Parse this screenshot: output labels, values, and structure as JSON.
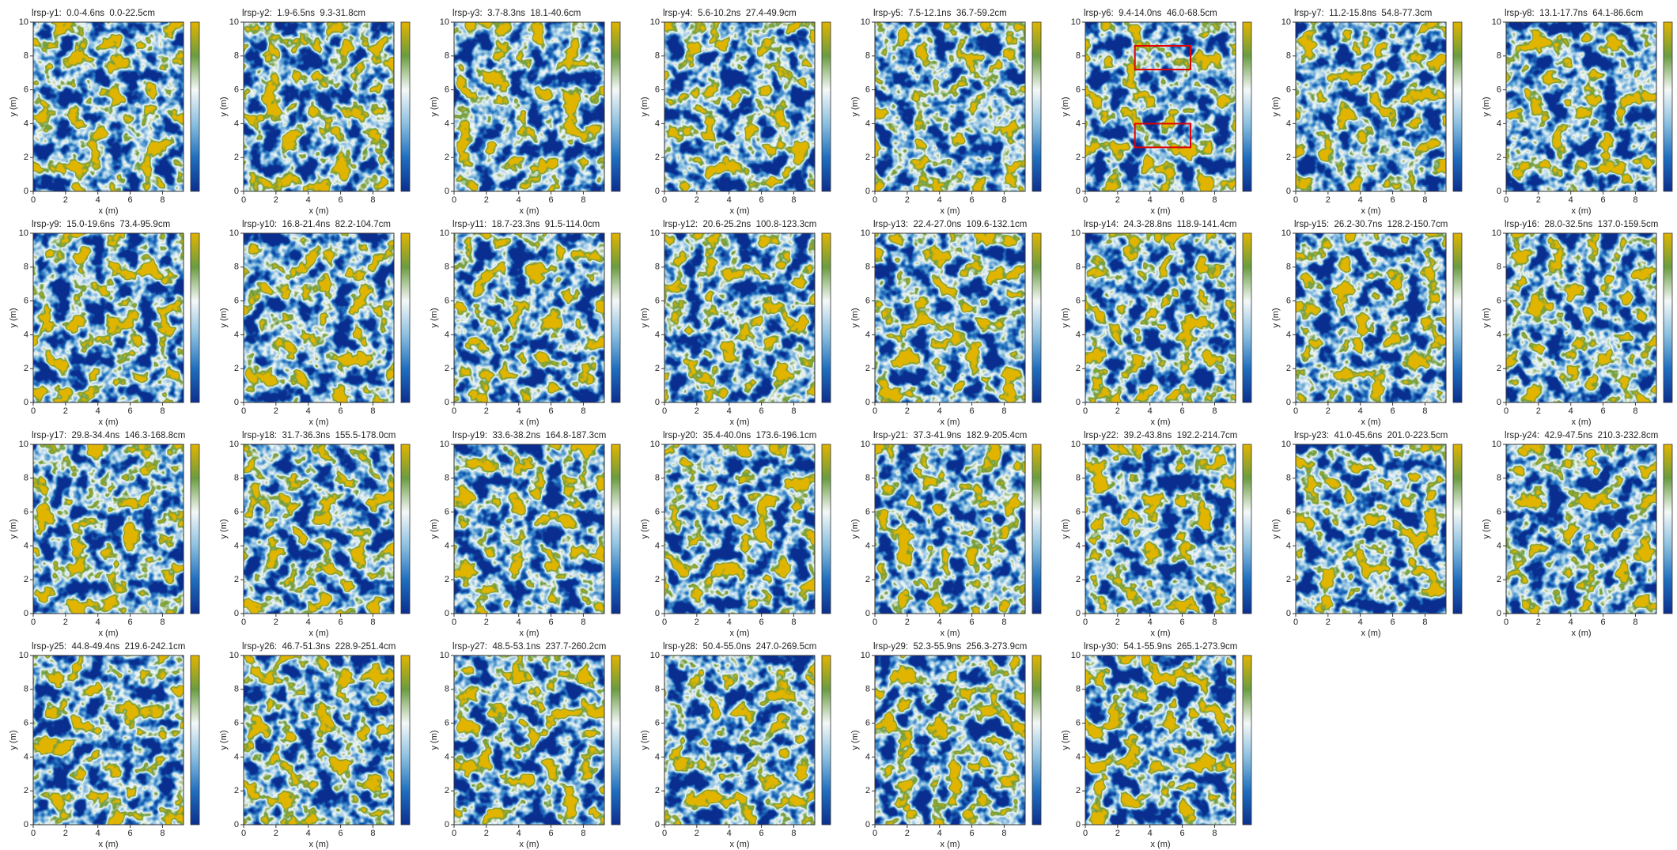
{
  "chart_data": [
    {
      "type": "heatmap",
      "title": "lrsp-y1:  0.0-4.6ns  0.0-22.5cm",
      "xlabel": "x (m)",
      "ylabel": "y (m)",
      "xlim": [
        0,
        9.3
      ],
      "ylim": [
        0,
        10
      ],
      "xticks": [
        0,
        2,
        4,
        6,
        8
      ],
      "yticks": [
        0,
        2,
        4,
        6,
        8,
        10
      ],
      "colormap": [
        "#0b2f8f",
        "#1f6fbf",
        "#8cc0e0",
        "#f4f8f8",
        "#6a9c40",
        "#e2b400"
      ]
    },
    {
      "type": "heatmap",
      "title": "lrsp-y2:  1.9-6.5ns  9.3-31.8cm",
      "xlabel": "x (m)",
      "ylabel": "y (m)",
      "xlim": [
        0,
        9.3
      ],
      "ylim": [
        0,
        10
      ],
      "xticks": [
        0,
        2,
        4,
        6,
        8
      ],
      "yticks": [
        0,
        2,
        4,
        6,
        8,
        10
      ],
      "colormap": [
        "#0b2f8f",
        "#1f6fbf",
        "#8cc0e0",
        "#f4f8f8",
        "#6a9c40",
        "#e2b400"
      ]
    },
    {
      "type": "heatmap",
      "title": "lrsp-y3:  3.7-8.3ns  18.1-40.6cm",
      "xlabel": "x (m)",
      "ylabel": "y (m)",
      "xlim": [
        0,
        9.3
      ],
      "ylim": [
        0,
        10
      ],
      "xticks": [
        0,
        2,
        4,
        6,
        8
      ],
      "yticks": [
        0,
        2,
        4,
        6,
        8,
        10
      ],
      "colormap": [
        "#0b2f8f",
        "#1f6fbf",
        "#8cc0e0",
        "#f4f8f8",
        "#6a9c40",
        "#e2b400"
      ]
    },
    {
      "type": "heatmap",
      "title": "lrsp-y4:  5.6-10.2ns  27.4-49.9cm",
      "xlabel": "x (m)",
      "ylabel": "y (m)",
      "xlim": [
        0,
        9.3
      ],
      "ylim": [
        0,
        10
      ],
      "xticks": [
        0,
        2,
        4,
        6,
        8
      ],
      "yticks": [
        0,
        2,
        4,
        6,
        8,
        10
      ],
      "colormap": [
        "#0b2f8f",
        "#1f6fbf",
        "#8cc0e0",
        "#f4f8f8",
        "#6a9c40",
        "#e2b400"
      ]
    },
    {
      "type": "heatmap",
      "title": "lrsp-y5:  7.5-12.1ns  36.7-59.2cm",
      "xlabel": "x (m)",
      "ylabel": "y (m)",
      "xlim": [
        0,
        9.3
      ],
      "ylim": [
        0,
        10
      ],
      "xticks": [
        0,
        2,
        4,
        6,
        8
      ],
      "yticks": [
        0,
        2,
        4,
        6,
        8,
        10
      ],
      "colormap": [
        "#0b2f8f",
        "#1f6fbf",
        "#8cc0e0",
        "#f4f8f8",
        "#6a9c40",
        "#e2b400"
      ]
    },
    {
      "type": "heatmap",
      "title": "lrsp-y6:  9.4-14.0ns  46.0-68.5cm",
      "xlabel": "x (m)",
      "ylabel": "y (m)",
      "xlim": [
        0,
        9.3
      ],
      "ylim": [
        0,
        10
      ],
      "xticks": [
        0,
        2,
        4,
        6,
        8
      ],
      "yticks": [
        0,
        2,
        4,
        6,
        8,
        10
      ],
      "colormap": [
        "#0b2f8f",
        "#1f6fbf",
        "#8cc0e0",
        "#f4f8f8",
        "#6a9c40",
        "#e2b400"
      ]
    },
    {
      "type": "heatmap",
      "title": "lrsp-y7:  11.2-15.8ns  54.8-77.3cm",
      "xlabel": "x (m)",
      "ylabel": "y (m)",
      "xlim": [
        0,
        9.3
      ],
      "ylim": [
        0,
        10
      ],
      "xticks": [
        0,
        2,
        4,
        6,
        8
      ],
      "yticks": [
        0,
        2,
        4,
        6,
        8,
        10
      ],
      "colormap": [
        "#0b2f8f",
        "#1f6fbf",
        "#8cc0e0",
        "#f4f8f8",
        "#6a9c40",
        "#e2b400"
      ]
    },
    {
      "type": "heatmap",
      "title": "lrsp-y8:  13.1-17.7ns  64.1-86.6cm",
      "xlabel": "x (m)",
      "ylabel": "y (m)",
      "xlim": [
        0,
        9.3
      ],
      "ylim": [
        0,
        10
      ],
      "xticks": [
        0,
        2,
        4,
        6,
        8
      ],
      "yticks": [
        0,
        2,
        4,
        6,
        8,
        10
      ],
      "colormap": [
        "#0b2f8f",
        "#1f6fbf",
        "#8cc0e0",
        "#f4f8f8",
        "#6a9c40",
        "#e2b400"
      ]
    },
    {
      "type": "heatmap",
      "title": "lrsp-y9:  15.0-19.6ns  73.4-95.9cm",
      "xlabel": "x (m)",
      "ylabel": "y (m)",
      "xlim": [
        0,
        9.3
      ],
      "ylim": [
        0,
        10
      ],
      "xticks": [
        0,
        2,
        4,
        6,
        8
      ],
      "yticks": [
        0,
        2,
        4,
        6,
        8,
        10
      ],
      "colormap": [
        "#0b2f8f",
        "#1f6fbf",
        "#8cc0e0",
        "#f4f8f8",
        "#6a9c40",
        "#e2b400"
      ]
    },
    {
      "type": "heatmap",
      "title": "lrsp-y10:  16.8-21.4ns  82.2-104.7cm",
      "xlabel": "x (m)",
      "ylabel": "y (m)",
      "xlim": [
        0,
        9.3
      ],
      "ylim": [
        0,
        10
      ],
      "xticks": [
        0,
        2,
        4,
        6,
        8
      ],
      "yticks": [
        0,
        2,
        4,
        6,
        8,
        10
      ],
      "colormap": [
        "#0b2f8f",
        "#1f6fbf",
        "#8cc0e0",
        "#f4f8f8",
        "#6a9c40",
        "#e2b400"
      ]
    },
    {
      "type": "heatmap",
      "title": "lrsp-y11:  18.7-23.3ns  91.5-114.0cm",
      "xlabel": "x (m)",
      "ylabel": "y (m)",
      "xlim": [
        0,
        9.3
      ],
      "ylim": [
        0,
        10
      ],
      "xticks": [
        0,
        2,
        4,
        6,
        8
      ],
      "yticks": [
        0,
        2,
        4,
        6,
        8,
        10
      ],
      "colormap": [
        "#0b2f8f",
        "#1f6fbf",
        "#8cc0e0",
        "#f4f8f8",
        "#6a9c40",
        "#e2b400"
      ]
    },
    {
      "type": "heatmap",
      "title": "lrsp-y12:  20.6-25.2ns  100.8-123.3cm",
      "xlabel": "x (m)",
      "ylabel": "y (m)",
      "xlim": [
        0,
        9.3
      ],
      "ylim": [
        0,
        10
      ],
      "xticks": [
        0,
        2,
        4,
        6,
        8
      ],
      "yticks": [
        0,
        2,
        4,
        6,
        8,
        10
      ],
      "colormap": [
        "#0b2f8f",
        "#1f6fbf",
        "#8cc0e0",
        "#f4f8f8",
        "#6a9c40",
        "#e2b400"
      ]
    },
    {
      "type": "heatmap",
      "title": "lrsp-y13:  22.4-27.0ns  109.6-132.1cm",
      "xlabel": "x (m)",
      "ylabel": "y (m)",
      "xlim": [
        0,
        9.3
      ],
      "ylim": [
        0,
        10
      ],
      "xticks": [
        0,
        2,
        4,
        6,
        8
      ],
      "yticks": [
        0,
        2,
        4,
        6,
        8,
        10
      ],
      "colormap": [
        "#0b2f8f",
        "#1f6fbf",
        "#8cc0e0",
        "#f4f8f8",
        "#6a9c40",
        "#e2b400"
      ]
    },
    {
      "type": "heatmap",
      "title": "lrsp-y14:  24.3-28.8ns  118.9-141.4cm",
      "xlabel": "x (m)",
      "ylabel": "y (m)",
      "xlim": [
        0,
        9.3
      ],
      "ylim": [
        0,
        10
      ],
      "xticks": [
        0,
        2,
        4,
        6,
        8
      ],
      "yticks": [
        0,
        2,
        4,
        6,
        8,
        10
      ],
      "colormap": [
        "#0b2f8f",
        "#1f6fbf",
        "#8cc0e0",
        "#f4f8f8",
        "#6a9c40",
        "#e2b400"
      ]
    },
    {
      "type": "heatmap",
      "title": "lrsp-y15:  26.2-30.7ns  128.2-150.7cm",
      "xlabel": "x (m)",
      "ylabel": "y (m)",
      "xlim": [
        0,
        9.3
      ],
      "ylim": [
        0,
        10
      ],
      "xticks": [
        0,
        2,
        4,
        6,
        8
      ],
      "yticks": [
        0,
        2,
        4,
        6,
        8,
        10
      ],
      "colormap": [
        "#0b2f8f",
        "#1f6fbf",
        "#8cc0e0",
        "#f4f8f8",
        "#6a9c40",
        "#e2b400"
      ]
    },
    {
      "type": "heatmap",
      "title": "lrsp-y16:  28.0-32.5ns  137.0-159.5cm",
      "xlabel": "x (m)",
      "ylabel": "y (m)",
      "xlim": [
        0,
        9.3
      ],
      "ylim": [
        0,
        10
      ],
      "xticks": [
        0,
        2,
        4,
        6,
        8
      ],
      "yticks": [
        0,
        2,
        4,
        6,
        8,
        10
      ],
      "colormap": [
        "#0b2f8f",
        "#1f6fbf",
        "#8cc0e0",
        "#f4f8f8",
        "#6a9c40",
        "#e2b400"
      ]
    },
    {
      "type": "heatmap",
      "title": "lrsp-y17:  29.8-34.4ns  146.3-168.8cm",
      "xlabel": "x (m)",
      "ylabel": "y (m)",
      "xlim": [
        0,
        9.3
      ],
      "ylim": [
        0,
        10
      ],
      "xticks": [
        0,
        2,
        4,
        6,
        8
      ],
      "yticks": [
        0,
        2,
        4,
        6,
        8,
        10
      ],
      "colormap": [
        "#0b2f8f",
        "#1f6fbf",
        "#8cc0e0",
        "#f4f8f8",
        "#6a9c40",
        "#e2b400"
      ]
    },
    {
      "type": "heatmap",
      "title": "lrsp-y18:  31.7-36.3ns  155.5-178.0cm",
      "xlabel": "x (m)",
      "ylabel": "y (m)",
      "xlim": [
        0,
        9.3
      ],
      "ylim": [
        0,
        10
      ],
      "xticks": [
        0,
        2,
        4,
        6,
        8
      ],
      "yticks": [
        0,
        2,
        4,
        6,
        8,
        10
      ],
      "colormap": [
        "#0b2f8f",
        "#1f6fbf",
        "#8cc0e0",
        "#f4f8f8",
        "#6a9c40",
        "#e2b400"
      ]
    },
    {
      "type": "heatmap",
      "title": "lrsp-y19:  33.6-38.2ns  164.8-187.3cm",
      "xlabel": "x (m)",
      "ylabel": "y (m)",
      "xlim": [
        0,
        9.3
      ],
      "ylim": [
        0,
        10
      ],
      "xticks": [
        0,
        2,
        4,
        6,
        8
      ],
      "yticks": [
        0,
        2,
        4,
        6,
        8,
        10
      ],
      "colormap": [
        "#0b2f8f",
        "#1f6fbf",
        "#8cc0e0",
        "#f4f8f8",
        "#6a9c40",
        "#e2b400"
      ]
    },
    {
      "type": "heatmap",
      "title": "lrsp-y20:  35.4-40.0ns  173.6-196.1cm",
      "xlabel": "x (m)",
      "ylabel": "y (m)",
      "xlim": [
        0,
        9.3
      ],
      "ylim": [
        0,
        10
      ],
      "xticks": [
        0,
        2,
        4,
        6,
        8
      ],
      "yticks": [
        0,
        2,
        4,
        6,
        8,
        10
      ],
      "colormap": [
        "#0b2f8f",
        "#1f6fbf",
        "#8cc0e0",
        "#f4f8f8",
        "#6a9c40",
        "#e2b400"
      ]
    },
    {
      "type": "heatmap",
      "title": "lrsp-y21:  37.3-41.9ns  182.9-205.4cm",
      "xlabel": "x (m)",
      "ylabel": "y (m)",
      "xlim": [
        0,
        9.3
      ],
      "ylim": [
        0,
        10
      ],
      "xticks": [
        0,
        2,
        4,
        6,
        8
      ],
      "yticks": [
        0,
        2,
        4,
        6,
        8,
        10
      ],
      "colormap": [
        "#0b2f8f",
        "#1f6fbf",
        "#8cc0e0",
        "#f4f8f8",
        "#6a9c40",
        "#e2b400"
      ]
    },
    {
      "type": "heatmap",
      "title": "lrsp-y22:  39.2-43.8ns  192.2-214.7cm",
      "xlabel": "x (m)",
      "ylabel": "y (m)",
      "xlim": [
        0,
        9.3
      ],
      "ylim": [
        0,
        10
      ],
      "xticks": [
        0,
        2,
        4,
        6,
        8
      ],
      "yticks": [
        0,
        2,
        4,
        6,
        8,
        10
      ],
      "colormap": [
        "#0b2f8f",
        "#1f6fbf",
        "#8cc0e0",
        "#f4f8f8",
        "#6a9c40",
        "#e2b400"
      ]
    },
    {
      "type": "heatmap",
      "title": "lrsp-y23:  41.0-45.6ns  201.0-223.5cm",
      "xlabel": "x (m)",
      "ylabel": "y (m)",
      "xlim": [
        0,
        9.3
      ],
      "ylim": [
        0,
        10
      ],
      "xticks": [
        0,
        2,
        4,
        6,
        8
      ],
      "yticks": [
        0,
        2,
        4,
        6,
        8,
        10
      ],
      "colormap": [
        "#0b2f8f",
        "#1f6fbf",
        "#8cc0e0",
        "#f4f8f8",
        "#6a9c40",
        "#e2b400"
      ]
    },
    {
      "type": "heatmap",
      "title": "lrsp-y24:  42.9-47.5ns  210.3-232.8cm",
      "xlabel": "x (m)",
      "ylabel": "y (m)",
      "xlim": [
        0,
        9.3
      ],
      "ylim": [
        0,
        10
      ],
      "xticks": [
        0,
        2,
        4,
        6,
        8
      ],
      "yticks": [
        0,
        2,
        4,
        6,
        8,
        10
      ],
      "colormap": [
        "#0b2f8f",
        "#1f6fbf",
        "#8cc0e0",
        "#f4f8f8",
        "#6a9c40",
        "#e2b400"
      ]
    },
    {
      "type": "heatmap",
      "title": "lrsp-y25:  44.8-49.4ns  219.6-242.1cm",
      "xlabel": "x (m)",
      "ylabel": "y (m)",
      "xlim": [
        0,
        9.3
      ],
      "ylim": [
        0,
        10
      ],
      "xticks": [
        0,
        2,
        4,
        6,
        8
      ],
      "yticks": [
        0,
        2,
        4,
        6,
        8,
        10
      ],
      "colormap": [
        "#0b2f8f",
        "#1f6fbf",
        "#8cc0e0",
        "#f4f8f8",
        "#6a9c40",
        "#e2b400"
      ]
    },
    {
      "type": "heatmap",
      "title": "lrsp-y26:  46.7-51.3ns  228.9-251.4cm",
      "xlabel": "x (m)",
      "ylabel": "y (m)",
      "xlim": [
        0,
        9.3
      ],
      "ylim": [
        0,
        10
      ],
      "xticks": [
        0,
        2,
        4,
        6,
        8
      ],
      "yticks": [
        0,
        2,
        4,
        6,
        8,
        10
      ],
      "colormap": [
        "#0b2f8f",
        "#1f6fbf",
        "#8cc0e0",
        "#f4f8f8",
        "#6a9c40",
        "#e2b400"
      ]
    },
    {
      "type": "heatmap",
      "title": "lrsp-y27:  48.5-53.1ns  237.7-260.2cm",
      "xlabel": "x (m)",
      "ylabel": "y (m)",
      "xlim": [
        0,
        9.3
      ],
      "ylim": [
        0,
        10
      ],
      "xticks": [
        0,
        2,
        4,
        6,
        8
      ],
      "yticks": [
        0,
        2,
        4,
        6,
        8,
        10
      ],
      "colormap": [
        "#0b2f8f",
        "#1f6fbf",
        "#8cc0e0",
        "#f4f8f8",
        "#6a9c40",
        "#e2b400"
      ]
    },
    {
      "type": "heatmap",
      "title": "lrsp-y28:  50.4-55.0ns  247.0-269.5cm",
      "xlabel": "x (m)",
      "ylabel": "y (m)",
      "xlim": [
        0,
        9.3
      ],
      "ylim": [
        0,
        10
      ],
      "xticks": [
        0,
        2,
        4,
        6,
        8
      ],
      "yticks": [
        0,
        2,
        4,
        6,
        8,
        10
      ],
      "colormap": [
        "#0b2f8f",
        "#1f6fbf",
        "#8cc0e0",
        "#f4f8f8",
        "#6a9c40",
        "#e2b400"
      ]
    },
    {
      "type": "heatmap",
      "title": "lrsp-y29:  52.3-55.9ns  256.3-273.9cm",
      "xlabel": "x (m)",
      "ylabel": "y (m)",
      "xlim": [
        0,
        9.3
      ],
      "ylim": [
        0,
        10
      ],
      "xticks": [
        0,
        2,
        4,
        6,
        8
      ],
      "yticks": [
        0,
        2,
        4,
        6,
        8,
        10
      ],
      "colormap": [
        "#0b2f8f",
        "#1f6fbf",
        "#8cc0e0",
        "#f4f8f8",
        "#6a9c40",
        "#e2b400"
      ]
    },
    {
      "type": "heatmap",
      "title": "lrsp-y30:  54.1-55.9ns  265.1-273.9cm",
      "xlabel": "x (m)",
      "ylabel": "y (m)",
      "xlim": [
        0,
        9.3
      ],
      "ylim": [
        0,
        10
      ],
      "xticks": [
        0,
        2,
        4,
        6,
        8
      ],
      "yticks": [
        0,
        2,
        4,
        6,
        8,
        10
      ],
      "colormap": [
        "#0b2f8f",
        "#1f6fbf",
        "#8cc0e0",
        "#f4f8f8",
        "#6a9c40",
        "#e2b400"
      ]
    }
  ]
}
